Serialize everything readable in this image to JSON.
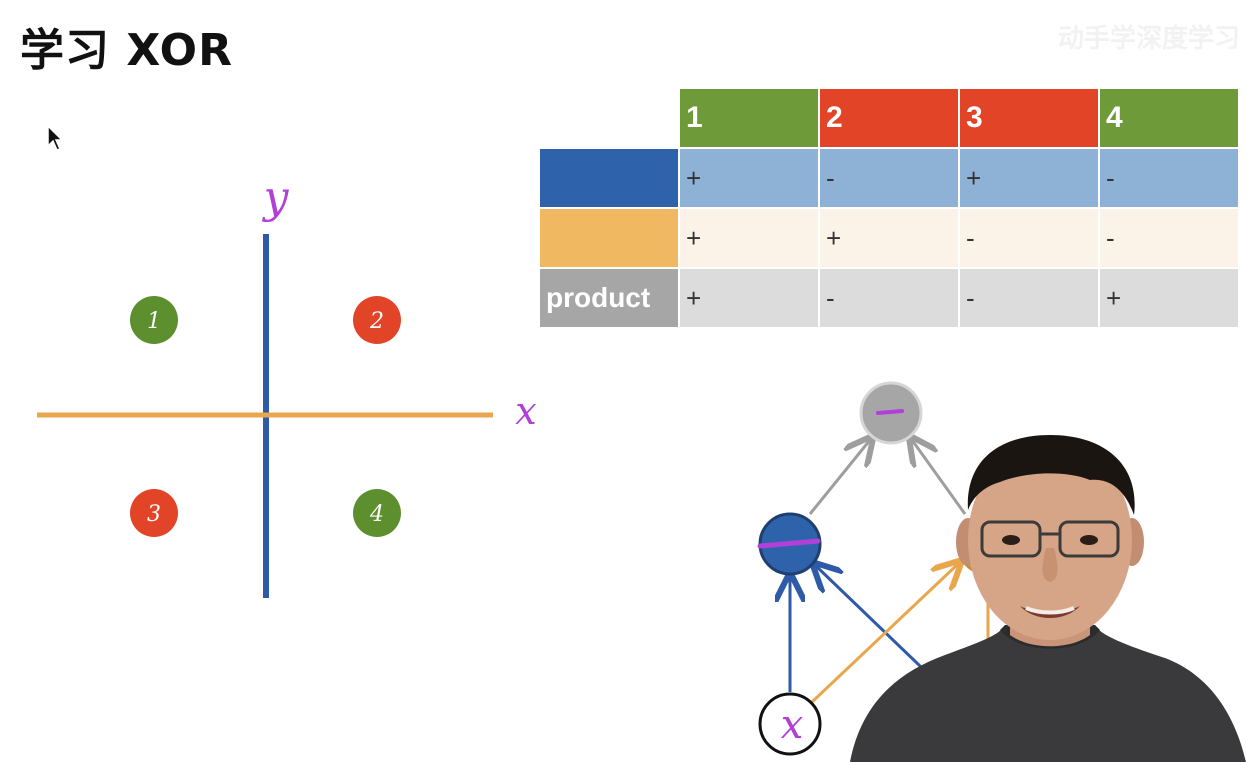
{
  "title": "学习 XOR",
  "watermark": "动手学深度学习",
  "plot": {
    "x_label": "x",
    "y_label": "y",
    "points": [
      {
        "label": "1",
        "color": "#5e8f2e"
      },
      {
        "label": "2",
        "color": "#e24428"
      },
      {
        "label": "3",
        "color": "#e24428"
      },
      {
        "label": "4",
        "color": "#5e8f2e"
      }
    ]
  },
  "table": {
    "headers": [
      "1",
      "2",
      "3",
      "4"
    ],
    "header_colors": [
      "#6f9a3a",
      "#e24428",
      "#e24428",
      "#6f9a3a"
    ],
    "rows": [
      {
        "label": "",
        "color": "#2e63ac",
        "values": [
          "+",
          "-",
          "+",
          "-"
        ]
      },
      {
        "label": "",
        "color": "#f0b860",
        "values": [
          "+",
          "+",
          "-",
          "-"
        ]
      },
      {
        "label": "product",
        "color": "#a6a6a6",
        "values": [
          "+",
          "-",
          "-",
          "+"
        ]
      }
    ]
  },
  "network": {
    "input_label": "x",
    "hidden_blue_color": "#2e63ac",
    "hidden_orange_color": "#f0b860",
    "output_color": "#a6a6a6"
  }
}
